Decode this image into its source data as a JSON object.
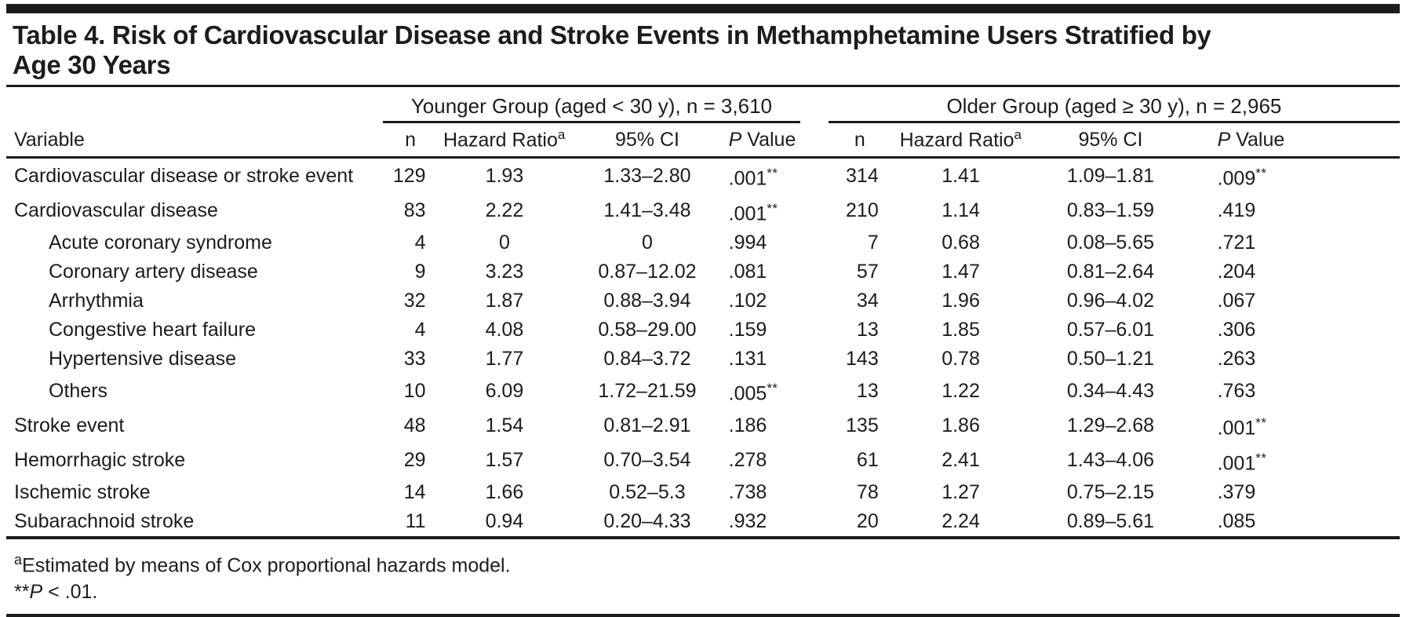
{
  "table": {
    "title_lines": [
      "Table 4. Risk of Cardiovascular Disease and Stroke Events in Methamphetamine Users Stratified by",
      "Age 30 Years"
    ],
    "variable_header": "Variable",
    "groups": [
      {
        "label": "Younger Group (aged < 30 y), n = 3,610"
      },
      {
        "label": "Older Group (aged ≥ 30 y), n = 2,965"
      }
    ],
    "column_headers": {
      "n": "n",
      "hazard_ratio": "Hazard Ratio",
      "hazard_ratio_footnote_marker": "a",
      "ci": "95% CI",
      "p_italic": "P",
      "p_rest": " Value"
    },
    "rows": [
      {
        "label": "Cardiovascular disease or stroke event",
        "indent": false,
        "younger": {
          "n": "129",
          "hr": "1.93",
          "ci": "1.33–2.80",
          "p": ".001",
          "p_mark": "**"
        },
        "older": {
          "n": "314",
          "hr": "1.41",
          "ci": "1.09–1.81",
          "p": ".009",
          "p_mark": "**"
        }
      },
      {
        "label": "Cardiovascular disease",
        "indent": false,
        "younger": {
          "n": "83",
          "hr": "2.22",
          "ci": "1.41–3.48",
          "p": ".001",
          "p_mark": "**"
        },
        "older": {
          "n": "210",
          "hr": "1.14",
          "ci": "0.83–1.59",
          "p": ".419",
          "p_mark": ""
        }
      },
      {
        "label": "Acute coronary syndrome",
        "indent": true,
        "younger": {
          "n": "4",
          "hr": "0",
          "ci": "0",
          "p": ".994",
          "p_mark": ""
        },
        "older": {
          "n": "7",
          "hr": "0.68",
          "ci": "0.08–5.65",
          "p": ".721",
          "p_mark": ""
        }
      },
      {
        "label": "Coronary artery disease",
        "indent": true,
        "younger": {
          "n": "9",
          "hr": "3.23",
          "ci": "0.87–12.02",
          "p": ".081",
          "p_mark": ""
        },
        "older": {
          "n": "57",
          "hr": "1.47",
          "ci": "0.81–2.64",
          "p": ".204",
          "p_mark": ""
        }
      },
      {
        "label": "Arrhythmia",
        "indent": true,
        "younger": {
          "n": "32",
          "hr": "1.87",
          "ci": "0.88–3.94",
          "p": ".102",
          "p_mark": ""
        },
        "older": {
          "n": "34",
          "hr": "1.96",
          "ci": "0.96–4.02",
          "p": ".067",
          "p_mark": ""
        }
      },
      {
        "label": "Congestive heart failure",
        "indent": true,
        "younger": {
          "n": "4",
          "hr": "4.08",
          "ci": "0.58–29.00",
          "p": ".159",
          "p_mark": ""
        },
        "older": {
          "n": "13",
          "hr": "1.85",
          "ci": "0.57–6.01",
          "p": ".306",
          "p_mark": ""
        }
      },
      {
        "label": "Hypertensive disease",
        "indent": true,
        "younger": {
          "n": "33",
          "hr": "1.77",
          "ci": "0.84–3.72",
          "p": ".131",
          "p_mark": ""
        },
        "older": {
          "n": "143",
          "hr": "0.78",
          "ci": "0.50–1.21",
          "p": ".263",
          "p_mark": ""
        }
      },
      {
        "label": "Others",
        "indent": true,
        "younger": {
          "n": "10",
          "hr": "6.09",
          "ci": "1.72–21.59",
          "p": ".005",
          "p_mark": "**"
        },
        "older": {
          "n": "13",
          "hr": "1.22",
          "ci": "0.34–4.43",
          "p": ".763",
          "p_mark": ""
        }
      },
      {
        "label": "Stroke event",
        "indent": false,
        "younger": {
          "n": "48",
          "hr": "1.54",
          "ci": "0.81–2.91",
          "p": ".186",
          "p_mark": ""
        },
        "older": {
          "n": "135",
          "hr": "1.86",
          "ci": "1.29–2.68",
          "p": ".001",
          "p_mark": "**"
        }
      },
      {
        "label": "Hemorrhagic stroke",
        "indent": false,
        "younger": {
          "n": "29",
          "hr": "1.57",
          "ci": "0.70–3.54",
          "p": ".278",
          "p_mark": ""
        },
        "older": {
          "n": "61",
          "hr": "2.41",
          "ci": "1.43–4.06",
          "p": ".001",
          "p_mark": "**"
        }
      },
      {
        "label": "Ischemic stroke",
        "indent": false,
        "younger": {
          "n": "14",
          "hr": "1.66",
          "ci": "0.52–5.3",
          "p": ".738",
          "p_mark": ""
        },
        "older": {
          "n": "78",
          "hr": "1.27",
          "ci": "0.75–2.15",
          "p": ".379",
          "p_mark": ""
        }
      },
      {
        "label": "Subarachnoid stroke",
        "indent": false,
        "younger": {
          "n": "11",
          "hr": "0.94",
          "ci": "0.20–4.33",
          "p": ".932",
          "p_mark": ""
        },
        "older": {
          "n": "20",
          "hr": "2.24",
          "ci": "0.89–5.61",
          "p": ".085",
          "p_mark": ""
        }
      }
    ],
    "footnotes": {
      "cox": {
        "marker": "a",
        "text": "Estimated by means of Cox proportional hazards model."
      },
      "significance": {
        "stars": "**",
        "p": "P",
        "rest": " < .01."
      }
    },
    "colors": {
      "text": "#1c1c1c",
      "rule": "#1c1c1c",
      "background": "#ffffff"
    }
  }
}
